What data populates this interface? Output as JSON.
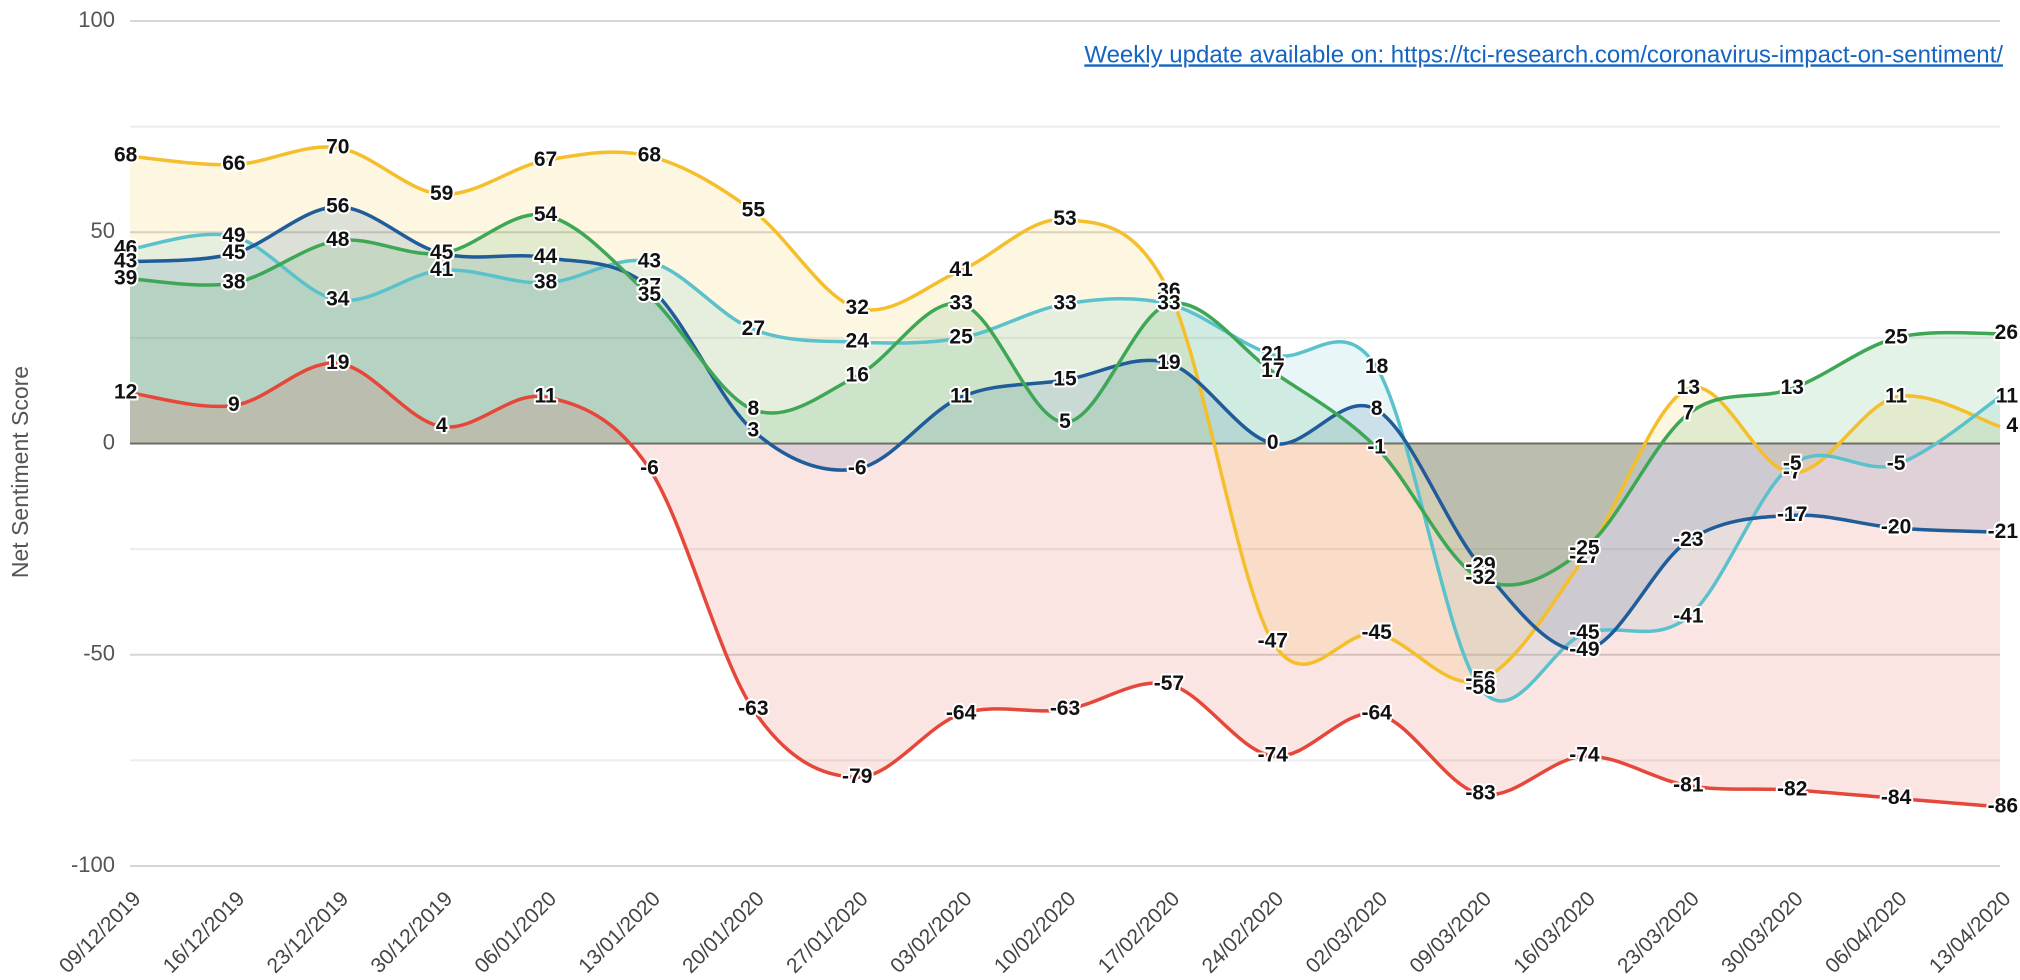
{
  "chart_data": {
    "type": "line",
    "y_label": "Net Sentiment Score",
    "annotation": "Weekly update available on: https://tci-research.com/coronavirus-impact-on-sentiment/",
    "categories": [
      "09/12/2019",
      "16/12/2019",
      "23/12/2019",
      "30/12/2019",
      "06/01/2020",
      "13/01/2020",
      "20/01/2020",
      "27/01/2020",
      "03/02/2020",
      "10/02/2020",
      "17/02/2020",
      "24/02/2020",
      "02/03/2020",
      "09/03/2020",
      "16/03/2020",
      "23/03/2020",
      "30/03/2020",
      "06/04/2020",
      "13/04/2020"
    ],
    "series": [
      {
        "color": "#f4bf2a",
        "values": [
          68,
          66,
          70,
          59,
          67,
          68,
          55,
          32,
          41,
          53,
          36,
          -47,
          -45,
          -56,
          -27,
          13,
          -7,
          11,
          4
        ]
      },
      {
        "color": "#5bc2cb",
        "values": [
          46,
          49,
          34,
          41,
          38,
          43,
          27,
          24,
          25,
          33,
          33,
          21,
          18,
          -58,
          -45,
          -41,
          -5,
          -5,
          11
        ]
      },
      {
        "color": "#1f5c99",
        "values": [
          43,
          45,
          56,
          45,
          44,
          37,
          3,
          -6,
          11,
          15,
          19,
          0,
          8,
          -29,
          -49,
          -23,
          -17,
          -20,
          -21
        ]
      },
      {
        "color": "#3ea756",
        "values": [
          39,
          38,
          48,
          45,
          54,
          35,
          8,
          16,
          33,
          5,
          33,
          17,
          -1,
          -32,
          -25,
          7,
          13,
          25,
          26
        ]
      },
      {
        "color": "#e5473b",
        "values": [
          12,
          9,
          19,
          4,
          11,
          -6,
          -63,
          -79,
          -64,
          -63,
          -57,
          -74,
          -64,
          -83,
          -74,
          -81,
          -82,
          -84,
          -86
        ]
      }
    ],
    "ylim": [
      -100,
      100
    ],
    "yticks": [
      -100,
      -50,
      0,
      50,
      100
    ],
    "minor_yticks": [
      -75,
      -25,
      25,
      75
    ],
    "grid": true,
    "area_fill": true
  }
}
